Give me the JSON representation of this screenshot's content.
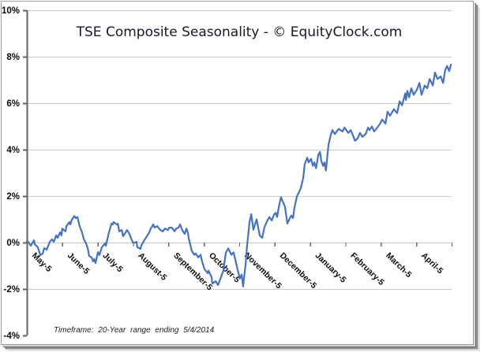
{
  "chart": {
    "title": "TSE Composite Seasonality - © EquityClock.com",
    "footnote": "Timeframe: 20-Year range ending 5/4/2014"
  },
  "style": {
    "line_color": "#4472c4",
    "grid_color": "#c8c8c8",
    "axis_color": "#636363",
    "title_color": "#16162e",
    "label_color": "#0a0a0a",
    "frame_border": "#9c9c9c",
    "background": "#ffffff"
  },
  "chart_data": {
    "type": "line",
    "title": "TSE Composite Seasonality - © EquityClock.com",
    "footnote": "Timeframe: 20-Year range ending 5/4/2014",
    "legend": "none",
    "grid": true,
    "x_axis": {
      "categories": [
        "May-5",
        "June-5",
        "July-5",
        "August-5",
        "September-5",
        "October-5",
        "November-5",
        "December-5",
        "January-5",
        "February-5",
        "March-5",
        "April-5"
      ],
      "label_rotation_deg": -45
    },
    "y_axis": {
      "min": -4,
      "max": 10,
      "step": 2,
      "unit": "%",
      "tick_labels": [
        "10%",
        "8%",
        "6%",
        "4%",
        "2%",
        "0%",
        "-2%",
        "-4%"
      ],
      "gridline_values": [
        10,
        8,
        6,
        4,
        2,
        0,
        -2
      ]
    },
    "series": [
      {
        "name": "TSE Composite Seasonality",
        "color": "#4472c4",
        "x_unit": "months_from_may_0_to_12",
        "y_unit": "percent",
        "points": [
          [
            0.0,
            0.05
          ],
          [
            0.04,
            0.03
          ],
          [
            0.11,
            -0.14
          ],
          [
            0.2,
            0.1
          ],
          [
            0.22,
            -0.07
          ],
          [
            0.31,
            -0.2
          ],
          [
            0.38,
            -0.54
          ],
          [
            0.45,
            -0.47
          ],
          [
            0.49,
            -0.24
          ],
          [
            0.56,
            -0.31
          ],
          [
            0.65,
            0.03
          ],
          [
            0.71,
            0.14
          ],
          [
            0.76,
            0.03
          ],
          [
            0.83,
            0.31
          ],
          [
            0.87,
            0.2
          ],
          [
            0.94,
            0.44
          ],
          [
            0.98,
            0.31
          ],
          [
            1.0,
            0.6
          ],
          [
            1.09,
            0.48
          ],
          [
            1.12,
            0.71
          ],
          [
            1.2,
            0.88
          ],
          [
            1.23,
            0.78
          ],
          [
            1.27,
            0.98
          ],
          [
            1.34,
            1.14
          ],
          [
            1.38,
            1.05
          ],
          [
            1.43,
            1.1
          ],
          [
            1.49,
            0.71
          ],
          [
            1.56,
            0.44
          ],
          [
            1.61,
            0.14
          ],
          [
            1.67,
            -0.03
          ],
          [
            1.72,
            -0.24
          ],
          [
            1.76,
            -0.58
          ],
          [
            1.83,
            -0.64
          ],
          [
            1.87,
            -0.81
          ],
          [
            1.9,
            -0.71
          ],
          [
            1.94,
            -0.88
          ],
          [
            2.01,
            -0.41
          ],
          [
            2.05,
            -0.54
          ],
          [
            2.12,
            -0.2
          ],
          [
            2.21,
            -0.03
          ],
          [
            2.23,
            -0.14
          ],
          [
            2.32,
            0.44
          ],
          [
            2.39,
            0.81
          ],
          [
            2.43,
            0.78
          ],
          [
            2.45,
            0.88
          ],
          [
            2.54,
            0.78
          ],
          [
            2.57,
            0.81
          ],
          [
            2.61,
            0.48
          ],
          [
            2.68,
            0.54
          ],
          [
            2.72,
            0.27
          ],
          [
            2.79,
            0.44
          ],
          [
            2.83,
            0.54
          ],
          [
            2.9,
            0.37
          ],
          [
            2.94,
            0.2
          ],
          [
            3.01,
            -0.03
          ],
          [
            3.1,
            0.03
          ],
          [
            3.12,
            -0.2
          ],
          [
            3.21,
            -0.27
          ],
          [
            3.23,
            -0.14
          ],
          [
            3.32,
            0.1
          ],
          [
            3.39,
            0.27
          ],
          [
            3.46,
            0.44
          ],
          [
            3.5,
            0.6
          ],
          [
            3.57,
            0.78
          ],
          [
            3.61,
            0.64
          ],
          [
            3.68,
            0.71
          ],
          [
            3.77,
            0.54
          ],
          [
            3.84,
            0.48
          ],
          [
            3.9,
            0.6
          ],
          [
            3.99,
            0.54
          ],
          [
            4.02,
            0.64
          ],
          [
            4.1,
            0.64
          ],
          [
            4.17,
            0.48
          ],
          [
            4.22,
            0.6
          ],
          [
            4.28,
            0.64
          ],
          [
            4.33,
            0.78
          ],
          [
            4.39,
            0.54
          ],
          [
            4.46,
            0.37
          ],
          [
            4.51,
            0.6
          ],
          [
            4.55,
            0.43
          ],
          [
            4.57,
            0.2
          ],
          [
            4.66,
            -0.36
          ],
          [
            4.73,
            -0.53
          ],
          [
            4.77,
            -0.47
          ],
          [
            4.84,
            -0.64
          ],
          [
            4.91,
            -0.53
          ],
          [
            4.95,
            -0.81
          ],
          [
            5.02,
            -1.15
          ],
          [
            5.11,
            -1.32
          ],
          [
            5.13,
            -1.21
          ],
          [
            5.22,
            -1.49
          ],
          [
            5.24,
            -1.77
          ],
          [
            5.33,
            -1.66
          ],
          [
            5.4,
            -1.83
          ],
          [
            5.47,
            -1.55
          ],
          [
            5.55,
            -1.21
          ],
          [
            5.62,
            -0.45
          ],
          [
            5.69,
            -0.25
          ],
          [
            5.78,
            -0.53
          ],
          [
            5.84,
            -0.42
          ],
          [
            5.91,
            -0.87
          ],
          [
            5.96,
            -1.21
          ],
          [
            6.02,
            -1.55
          ],
          [
            6.07,
            -1.38
          ],
          [
            6.11,
            -1.89
          ],
          [
            6.13,
            -1.6
          ],
          [
            6.18,
            -0.93
          ],
          [
            6.22,
            -0.14
          ],
          [
            6.25,
            0.26
          ],
          [
            6.29,
            0.88
          ],
          [
            6.34,
            1.22
          ],
          [
            6.4,
            0.55
          ],
          [
            6.49,
            1.0
          ],
          [
            6.58,
            0.3
          ],
          [
            6.65,
            0.2
          ],
          [
            6.71,
            0.65
          ],
          [
            6.78,
            0.9
          ],
          [
            6.85,
            1.1
          ],
          [
            6.92,
            0.95
          ],
          [
            6.98,
            1.2
          ],
          [
            7.03,
            1.28
          ],
          [
            7.07,
            1.1
          ],
          [
            7.12,
            1.55
          ],
          [
            7.18,
            1.95
          ],
          [
            7.25,
            1.7
          ],
          [
            7.29,
            1.56
          ],
          [
            7.36,
            0.82
          ],
          [
            7.43,
            1.05
          ],
          [
            7.47,
            1.16
          ],
          [
            7.52,
            1.05
          ],
          [
            7.56,
            1.5
          ],
          [
            7.63,
            2.0
          ],
          [
            7.7,
            2.2
          ],
          [
            7.74,
            2.35
          ],
          [
            7.78,
            2.6
          ],
          [
            7.81,
            2.8
          ],
          [
            7.85,
            3.37
          ],
          [
            7.92,
            3.65
          ],
          [
            7.96,
            3.45
          ],
          [
            8.03,
            3.6
          ],
          [
            8.08,
            3.3
          ],
          [
            8.12,
            3.45
          ],
          [
            8.17,
            3.2
          ],
          [
            8.23,
            3.75
          ],
          [
            8.28,
            3.9
          ],
          [
            8.32,
            3.5
          ],
          [
            8.37,
            3.3
          ],
          [
            8.41,
            3.45
          ],
          [
            8.45,
            3.1
          ],
          [
            8.52,
            4.2
          ],
          [
            8.58,
            4.6
          ],
          [
            8.63,
            4.84
          ],
          [
            8.7,
            4.67
          ],
          [
            8.81,
            4.89
          ],
          [
            8.92,
            4.78
          ],
          [
            8.97,
            4.95
          ],
          [
            9.08,
            4.72
          ],
          [
            9.15,
            4.84
          ],
          [
            9.23,
            4.55
          ],
          [
            9.27,
            4.38
          ],
          [
            9.35,
            4.5
          ],
          [
            9.41,
            4.72
          ],
          [
            9.48,
            4.55
          ],
          [
            9.57,
            4.67
          ],
          [
            9.64,
            4.95
          ],
          [
            9.68,
            4.84
          ],
          [
            9.75,
            5.0
          ],
          [
            9.81,
            4.78
          ],
          [
            9.9,
            4.95
          ],
          [
            9.97,
            5.1
          ],
          [
            10.04,
            5.29
          ],
          [
            10.13,
            5.12
          ],
          [
            10.19,
            5.63
          ],
          [
            10.26,
            5.46
          ],
          [
            10.37,
            5.74
          ],
          [
            10.46,
            5.57
          ],
          [
            10.53,
            6.08
          ],
          [
            10.6,
            5.91
          ],
          [
            10.69,
            6.42
          ],
          [
            10.71,
            6.14
          ],
          [
            10.75,
            6.53
          ],
          [
            10.8,
            6.25
          ],
          [
            10.86,
            6.64
          ],
          [
            10.93,
            6.36
          ],
          [
            11.02,
            6.59
          ],
          [
            11.09,
            6.87
          ],
          [
            11.15,
            6.36
          ],
          [
            11.24,
            6.76
          ],
          [
            11.31,
            6.64
          ],
          [
            11.38,
            7.04
          ],
          [
            11.47,
            6.76
          ],
          [
            11.53,
            7.32
          ],
          [
            11.6,
            7.04
          ],
          [
            11.69,
            7.15
          ],
          [
            11.76,
            6.87
          ],
          [
            11.82,
            7.43
          ],
          [
            11.87,
            7.6
          ],
          [
            11.93,
            7.38
          ],
          [
            11.98,
            7.66
          ]
        ]
      }
    ]
  }
}
